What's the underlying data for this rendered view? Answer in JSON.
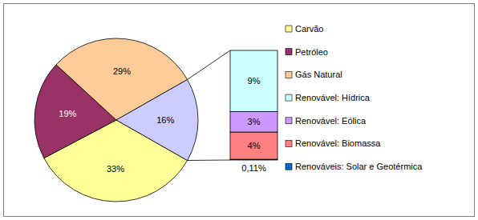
{
  "chart_data": {
    "type": "pie",
    "categories": [
      "Carvão",
      "Petróleo",
      "Gás Natural",
      null
    ],
    "values": [
      33,
      19,
      29,
      16
    ],
    "value_labels": [
      "33%",
      "19%",
      "29%",
      "16%"
    ],
    "colors": [
      "#FFFF99",
      "#993366",
      "#FFCC99",
      "#CCCCFF"
    ],
    "data_labels": true,
    "legend": "right",
    "breakdown": {
      "type": "bar",
      "stacked": true,
      "categories": [
        "Renovável: Hídrica",
        "Renovável: Eólica",
        "Renovável: Biomassa",
        "Renováveis: Solar e Geotérmica"
      ],
      "values": [
        9,
        3,
        4,
        0.11
      ],
      "value_labels": [
        "9%",
        "3%",
        "4%",
        "0,11%"
      ],
      "colors": [
        "#CCFFFF",
        "#CC99FF",
        "#FF8080",
        "#0066CC"
      ],
      "data_labels": true
    }
  }
}
